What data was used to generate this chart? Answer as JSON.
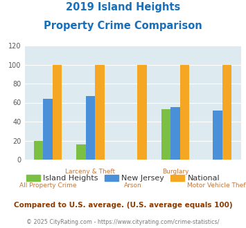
{
  "title_line1": "2019 Island Heights",
  "title_line2": "Property Crime Comparison",
  "categories": [
    "All Property Crime",
    "Larceny & Theft",
    "Arson",
    "Burglary",
    "Motor Vehicle Theft"
  ],
  "series": {
    "Island Heights": [
      20,
      16,
      null,
      53,
      null
    ],
    "New Jersey": [
      64,
      67,
      null,
      55,
      52
    ],
    "National": [
      100,
      100,
      100,
      100,
      100
    ]
  },
  "colors": {
    "Island Heights": "#7bc043",
    "New Jersey": "#4a90d9",
    "National": "#f5a623"
  },
  "ylim": [
    0,
    120
  ],
  "yticks": [
    0,
    20,
    40,
    60,
    80,
    100,
    120
  ],
  "bar_width": 0.22,
  "title_color": "#1a6fba",
  "axis_bg_color": "#ddeaf0",
  "fig_bg_color": "#ffffff",
  "xlabel_color": "#c07840",
  "footer_text": "Compared to U.S. average. (U.S. average equals 100)",
  "credit_text": "© 2025 CityRating.com - https://www.cityrating.com/crime-statistics/",
  "footer_color": "#8b3a00",
  "credit_color": "#7a7a7a",
  "cat_labels_top": [
    "",
    "Larceny & Theft",
    "",
    "Burglary",
    ""
  ],
  "cat_labels_bot": [
    "All Property Crime",
    "",
    "Arson",
    "",
    "Motor Vehicle Theft"
  ]
}
